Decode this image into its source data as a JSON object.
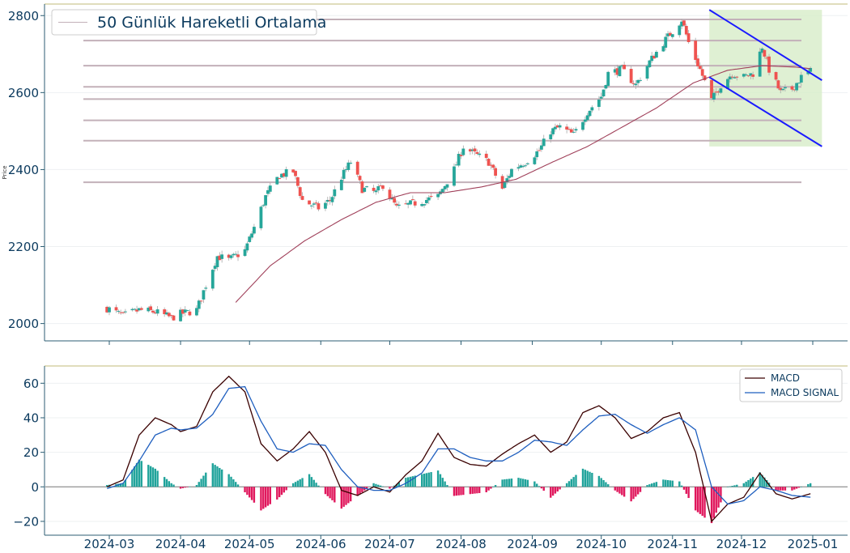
{
  "chart_data": [
    {
      "type": "candlestick",
      "ylabel": "Price",
      "ylim": [
        1955,
        2830
      ],
      "y_ticks": [
        "2000",
        "2200",
        "2400",
        "2600",
        "2800"
      ],
      "legend": {
        "label": "50 Günlük Hareketli Ortalama",
        "position": "top-left"
      },
      "colors": {
        "up": "#26a69a",
        "down": "#ef5350",
        "ma": "#a0405a",
        "sr": "#c3b1b9",
        "channel": "#1a1aff",
        "channel_fill": "#d7ecc8"
      },
      "support_resistance_levels": [
        2790,
        2735,
        2670,
        2615,
        2583,
        2528,
        2475,
        2367
      ],
      "channel": {
        "upper": [
          [
            "2024-11-17",
            2815
          ],
          [
            "2025-01-05",
            2632
          ]
        ],
        "lower": [
          [
            "2024-11-17",
            2640
          ],
          [
            "2025-01-05",
            2460
          ]
        ]
      },
      "close_anchors": [
        [
          "2024-02-29",
          2040
        ],
        [
          "2024-03-07",
          2020
        ],
        [
          "2024-03-14",
          2035
        ],
        [
          "2024-03-21",
          2030
        ],
        [
          "2024-03-28",
          2015
        ],
        [
          "2024-04-01",
          2025
        ],
        [
          "2024-04-08",
          2035
        ],
        [
          "2024-04-12",
          2100
        ],
        [
          "2024-04-17",
          2175
        ],
        [
          "2024-04-22",
          2165
        ],
        [
          "2024-04-29",
          2190
        ],
        [
          "2024-05-03",
          2250
        ],
        [
          "2024-05-08",
          2330
        ],
        [
          "2024-05-14",
          2385
        ],
        [
          "2024-05-20",
          2395
        ],
        [
          "2024-05-24",
          2320
        ],
        [
          "2024-05-31",
          2300
        ],
        [
          "2024-06-05",
          2320
        ],
        [
          "2024-06-10",
          2380
        ],
        [
          "2024-06-14",
          2420
        ],
        [
          "2024-06-19",
          2350
        ],
        [
          "2024-06-25",
          2340
        ],
        [
          "2024-06-28",
          2360
        ],
        [
          "2024-07-04",
          2300
        ],
        [
          "2024-07-10",
          2310
        ],
        [
          "2024-07-16",
          2320
        ],
        [
          "2024-07-22",
          2330
        ],
        [
          "2024-07-29",
          2400
        ],
        [
          "2024-08-02",
          2460
        ],
        [
          "2024-08-07",
          2440
        ],
        [
          "2024-08-13",
          2420
        ],
        [
          "2024-08-19",
          2350
        ],
        [
          "2024-08-23",
          2400
        ],
        [
          "2024-08-29",
          2420
        ],
        [
          "2024-09-04",
          2450
        ],
        [
          "2024-09-09",
          2500
        ],
        [
          "2024-09-13",
          2510
        ],
        [
          "2024-09-19",
          2490
        ],
        [
          "2024-09-25",
          2550
        ],
        [
          "2024-10-01",
          2590
        ],
        [
          "2024-10-04",
          2650
        ],
        [
          "2024-10-10",
          2660
        ],
        [
          "2024-10-16",
          2620
        ],
        [
          "2024-10-22",
          2680
        ],
        [
          "2024-10-28",
          2730
        ],
        [
          "2024-11-01",
          2760
        ],
        [
          "2024-11-05",
          2790
        ],
        [
          "2024-11-08",
          2730
        ],
        [
          "2024-11-13",
          2660
        ],
        [
          "2024-11-18",
          2580
        ],
        [
          "2024-11-22",
          2620
        ],
        [
          "2024-11-27",
          2650
        ],
        [
          "2024-12-02",
          2640
        ],
        [
          "2024-12-06",
          2650
        ],
        [
          "2024-12-10",
          2720
        ],
        [
          "2024-12-13",
          2660
        ],
        [
          "2024-12-18",
          2600
        ],
        [
          "2024-12-23",
          2610
        ],
        [
          "2024-12-27",
          2640
        ],
        [
          "2024-12-31",
          2655
        ]
      ],
      "ma50_anchors": [
        [
          "2024-04-25",
          2055
        ],
        [
          "2024-05-10",
          2150
        ],
        [
          "2024-05-25",
          2215
        ],
        [
          "2024-06-10",
          2270
        ],
        [
          "2024-06-25",
          2315
        ],
        [
          "2024-07-10",
          2340
        ],
        [
          "2024-07-25",
          2340
        ],
        [
          "2024-08-10",
          2355
        ],
        [
          "2024-08-25",
          2375
        ],
        [
          "2024-09-10",
          2420
        ],
        [
          "2024-09-25",
          2460
        ],
        [
          "2024-10-10",
          2510
        ],
        [
          "2024-10-25",
          2560
        ],
        [
          "2024-11-10",
          2625
        ],
        [
          "2024-11-25",
          2658
        ],
        [
          "2024-12-10",
          2670
        ],
        [
          "2024-12-25",
          2666
        ],
        [
          "2024-12-31",
          2662
        ]
      ]
    },
    {
      "type": "line",
      "ylim": [
        -28,
        70
      ],
      "y_ticks": [
        "60",
        "40",
        "20",
        "0",
        "−20"
      ],
      "x_ticks": [
        "2024-03",
        "2024-04",
        "2024-05",
        "2024-06",
        "2024-07",
        "2024-08",
        "2024-09",
        "2024-10",
        "2024-11",
        "2024-12",
        "2025-01"
      ],
      "legend_position": "top-right",
      "series": [
        {
          "name": "MACD",
          "color": "#3a0000",
          "anchors": [
            [
              "2024-02-29",
              0
            ],
            [
              "2024-03-07",
              4
            ],
            [
              "2024-03-14",
              30
            ],
            [
              "2024-03-21",
              40
            ],
            [
              "2024-03-28",
              36
            ],
            [
              "2024-04-01",
              32
            ],
            [
              "2024-04-08",
              35
            ],
            [
              "2024-04-15",
              55
            ],
            [
              "2024-04-22",
              64
            ],
            [
              "2024-04-29",
              55
            ],
            [
              "2024-05-06",
              25
            ],
            [
              "2024-05-13",
              15
            ],
            [
              "2024-05-20",
              22
            ],
            [
              "2024-05-27",
              32
            ],
            [
              "2024-06-03",
              20
            ],
            [
              "2024-06-10",
              -2
            ],
            [
              "2024-06-17",
              -5
            ],
            [
              "2024-06-24",
              0
            ],
            [
              "2024-07-01",
              -3
            ],
            [
              "2024-07-08",
              7
            ],
            [
              "2024-07-15",
              15
            ],
            [
              "2024-07-22",
              31
            ],
            [
              "2024-07-29",
              17
            ],
            [
              "2024-08-05",
              13
            ],
            [
              "2024-08-12",
              12
            ],
            [
              "2024-08-19",
              19
            ],
            [
              "2024-08-26",
              25
            ],
            [
              "2024-09-02",
              30
            ],
            [
              "2024-09-09",
              20
            ],
            [
              "2024-09-16",
              26
            ],
            [
              "2024-09-23",
              43
            ],
            [
              "2024-09-30",
              47
            ],
            [
              "2024-10-07",
              40
            ],
            [
              "2024-10-14",
              28
            ],
            [
              "2024-10-21",
              32
            ],
            [
              "2024-10-28",
              40
            ],
            [
              "2024-11-04",
              43
            ],
            [
              "2024-11-11",
              20
            ],
            [
              "2024-11-18",
              -20
            ],
            [
              "2024-11-25",
              -10
            ],
            [
              "2024-12-02",
              -6
            ],
            [
              "2024-12-09",
              8
            ],
            [
              "2024-12-16",
              -4
            ],
            [
              "2024-12-23",
              -7
            ],
            [
              "2024-12-31",
              -4
            ]
          ]
        },
        {
          "name": "MACD SIGNAL",
          "color": "#1f5fbf",
          "anchors": [
            [
              "2024-02-29",
              -1
            ],
            [
              "2024-03-07",
              2
            ],
            [
              "2024-03-14",
              15
            ],
            [
              "2024-03-21",
              30
            ],
            [
              "2024-03-28",
              34
            ],
            [
              "2024-04-01",
              33
            ],
            [
              "2024-04-08",
              34
            ],
            [
              "2024-04-15",
              42
            ],
            [
              "2024-04-22",
              57
            ],
            [
              "2024-04-29",
              58
            ],
            [
              "2024-05-06",
              38
            ],
            [
              "2024-05-13",
              22
            ],
            [
              "2024-05-20",
              20
            ],
            [
              "2024-05-27",
              25
            ],
            [
              "2024-06-03",
              24
            ],
            [
              "2024-06-10",
              10
            ],
            [
              "2024-06-17",
              0
            ],
            [
              "2024-06-24",
              -2
            ],
            [
              "2024-07-01",
              -2
            ],
            [
              "2024-07-08",
              2
            ],
            [
              "2024-07-15",
              8
            ],
            [
              "2024-07-22",
              22
            ],
            [
              "2024-07-29",
              22
            ],
            [
              "2024-08-05",
              17
            ],
            [
              "2024-08-12",
              15
            ],
            [
              "2024-08-19",
              15
            ],
            [
              "2024-08-26",
              20
            ],
            [
              "2024-09-02",
              27
            ],
            [
              "2024-09-09",
              26
            ],
            [
              "2024-09-16",
              24
            ],
            [
              "2024-09-23",
              33
            ],
            [
              "2024-09-30",
              41
            ],
            [
              "2024-10-07",
              42
            ],
            [
              "2024-10-14",
              36
            ],
            [
              "2024-10-21",
              31
            ],
            [
              "2024-10-28",
              36
            ],
            [
              "2024-11-04",
              40
            ],
            [
              "2024-11-11",
              33
            ],
            [
              "2024-11-18",
              0
            ],
            [
              "2024-11-25",
              -10
            ],
            [
              "2024-12-02",
              -8
            ],
            [
              "2024-12-09",
              0
            ],
            [
              "2024-12-16",
              -2
            ],
            [
              "2024-12-23",
              -5
            ],
            [
              "2024-12-31",
              -6
            ]
          ]
        }
      ],
      "histogram_colors": {
        "positive": "#20a39b",
        "negative": "#e0185d"
      }
    }
  ]
}
